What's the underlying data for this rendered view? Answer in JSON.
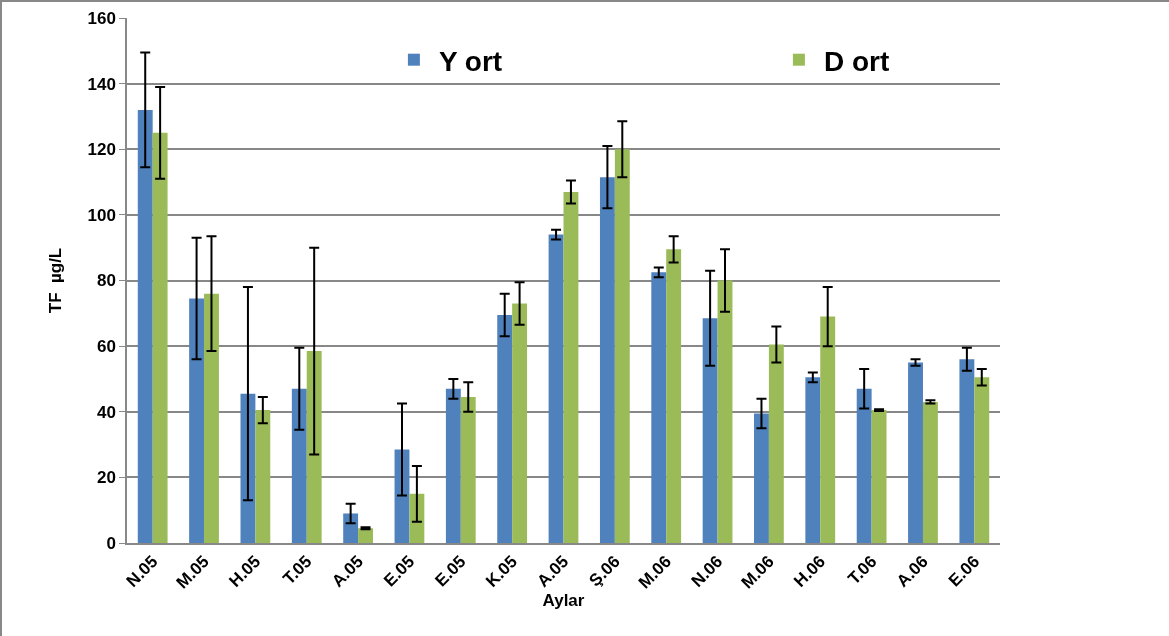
{
  "chart_data": {
    "type": "bar",
    "xlabel": "Aylar",
    "ylabel": "TF  µg/L",
    "categories": [
      "N.05",
      "M.05",
      "H.05",
      "T.05",
      "A.05",
      "E.05",
      "E.05",
      "K.05",
      "A.05",
      "Ş.06",
      "M.06",
      "N.06",
      "M.06",
      "H.06",
      "T.06",
      "A.06",
      "E.06"
    ],
    "series": [
      {
        "name": "Y ort",
        "color": "#4f81bd",
        "values": [
          132,
          74.5,
          45.5,
          47,
          9,
          28.5,
          47,
          69.5,
          94,
          111.5,
          82.5,
          68.5,
          39.5,
          50.5,
          47,
          55,
          56
        ],
        "errors": [
          17.5,
          18.5,
          32.5,
          12.5,
          3,
          14,
          3,
          6.5,
          1.5,
          9.5,
          1.5,
          14.5,
          4.5,
          1.5,
          6,
          1,
          3.5
        ]
      },
      {
        "name": "D ort",
        "color": "#9bbb59",
        "values": [
          125,
          76,
          40.5,
          58.5,
          4.5,
          15,
          44.5,
          73,
          107,
          120,
          89.5,
          80,
          60.5,
          69,
          40.5,
          43,
          50.5
        ],
        "errors": [
          14,
          17.5,
          4,
          31.5,
          0.3,
          8.5,
          4.5,
          6.5,
          3.5,
          8.5,
          4,
          9.5,
          5.5,
          9,
          0.3,
          0.5,
          2.5
        ]
      }
    ],
    "ylim": [
      0,
      160
    ],
    "yticks": [
      0,
      20,
      40,
      60,
      80,
      100,
      120,
      140,
      160
    ],
    "grid": "y",
    "legend": "top"
  }
}
